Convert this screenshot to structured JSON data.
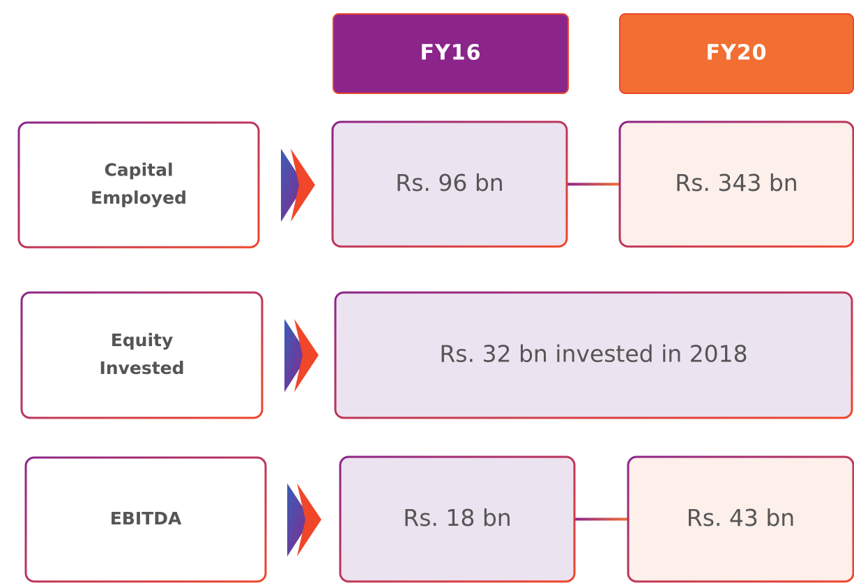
{
  "header": {
    "columns": [
      "FY16",
      "FY20"
    ]
  },
  "rows": [
    {
      "label": [
        "Capital",
        "Employed"
      ],
      "values": [
        "Rs. 96 bn",
        "Rs. 343 bn"
      ]
    },
    {
      "label": [
        "Equity",
        "Invested"
      ],
      "combined": "Rs. 32 bn invested in 2018"
    },
    {
      "label": [
        "EBITDA"
      ],
      "values": [
        "Rs. 18 bn",
        "Rs. 43 bn"
      ]
    }
  ]
}
